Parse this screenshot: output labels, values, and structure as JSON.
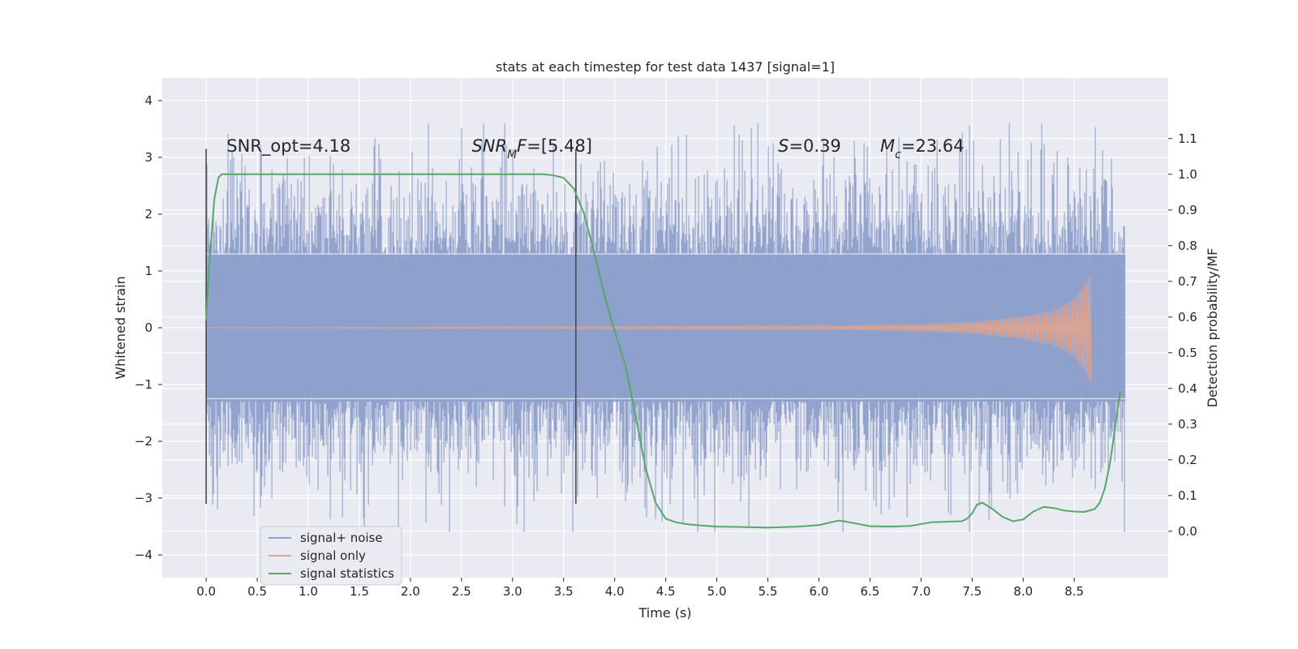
{
  "chart_data": {
    "type": "line",
    "title": "stats at each timestep for test data 1437 [signal=1]",
    "xlabel": "Time (s)",
    "ylabel": "Whitened strain",
    "y2label": "Detection probability/MF",
    "xlim": [
      -0.43,
      9.42
    ],
    "ylim": [
      -4.4,
      4.4
    ],
    "y2lim": [
      -0.13,
      1.27
    ],
    "x_ticks": [
      0.0,
      0.5,
      1.0,
      1.5,
      2.0,
      2.5,
      3.0,
      3.5,
      4.0,
      4.5,
      5.0,
      5.5,
      6.0,
      6.5,
      7.0,
      7.5,
      8.0,
      8.5
    ],
    "x_tick_labels": [
      "0.0",
      "0.5",
      "1.0",
      "1.5",
      "2.0",
      "2.5",
      "3.0",
      "3.5",
      "4.0",
      "4.5",
      "5.0",
      "5.5",
      "6.0",
      "6.5",
      "7.0",
      "7.5",
      "8.0",
      "8.5"
    ],
    "y_ticks": [
      4,
      3,
      2,
      1,
      0,
      -1,
      -2,
      -3,
      -4
    ],
    "y_tick_labels": [
      "4",
      "3",
      "2",
      "1",
      "0",
      "−1",
      "−2",
      "−3",
      "−4"
    ],
    "y2_ticks": [
      1.1,
      1.0,
      0.9,
      0.8,
      0.7,
      0.6,
      0.5,
      0.4,
      0.3,
      0.2,
      0.1,
      0.0
    ],
    "y2_tick_labels": [
      "1.1",
      "1.0",
      "0.9",
      "0.8",
      "0.7",
      "0.6",
      "0.5",
      "0.4",
      "0.3",
      "0.2",
      "0.1",
      "0.0"
    ],
    "grid": true,
    "legend_position": "lower-left",
    "annotations": [
      {
        "text": "SNR_opt=4.18",
        "x": 0.2
      },
      {
        "text": "SNR_MF=[5.48]",
        "x": 2.6
      },
      {
        "text": "S=0.39",
        "x": 5.6
      },
      {
        "text": "M_c=23.64",
        "x": 6.6
      }
    ],
    "annotations_y": 3.1,
    "vertical_markers": [
      {
        "x": 0.0,
        "y_range": [
          -3.1,
          3.15
        ]
      },
      {
        "x": 3.62,
        "y_range": [
          -3.1,
          3.15
        ]
      }
    ],
    "series": [
      {
        "name": "signal+ noise",
        "color": "#8da0cb",
        "style": "dense noise, x from 0.0 to 9.0 s, bulk amplitude about ±1.3, frequent excursions to ±2.0, peaks near ±3.5",
        "x_range": [
          0.0,
          9.0
        ],
        "envelope": [
          1.3,
          2.0,
          3.6
        ]
      },
      {
        "name": "signal only",
        "color": "#e5a48a",
        "style": "chirp growing in amplitude, ending near 8.65 s",
        "x_range": [
          0.0,
          8.67
        ],
        "amplitude_points": [
          [
            0.0,
            0.0
          ],
          [
            6.0,
            0.03
          ],
          [
            7.0,
            0.06
          ],
          [
            7.5,
            0.1
          ],
          [
            8.0,
            0.2
          ],
          [
            8.3,
            0.3
          ],
          [
            8.5,
            0.5
          ],
          [
            8.62,
            0.8
          ],
          [
            8.65,
            0.95
          ]
        ]
      },
      {
        "name": "signal statistics",
        "color": "#55a868",
        "axis": "right",
        "x": [
          0.0,
          0.02,
          0.05,
          0.08,
          0.12,
          0.15,
          0.2,
          0.25,
          0.3,
          0.5,
          1.0,
          2.0,
          3.0,
          3.3,
          3.4,
          3.5,
          3.6,
          3.7,
          3.8,
          3.9,
          4.0,
          4.1,
          4.2,
          4.3,
          4.4,
          4.5,
          4.6,
          4.7,
          4.8,
          5.0,
          5.2,
          5.5,
          5.8,
          6.0,
          6.1,
          6.2,
          6.3,
          6.5,
          6.7,
          6.9,
          7.1,
          7.3,
          7.4,
          7.45,
          7.5,
          7.55,
          7.6,
          7.7,
          7.8,
          7.9,
          8.0,
          8.1,
          8.2,
          8.3,
          8.4,
          8.5,
          8.6,
          8.7,
          8.75,
          8.8,
          8.85,
          8.9,
          8.95
        ],
        "values": [
          0.59,
          0.7,
          0.82,
          0.93,
          0.99,
          1.0,
          1.0,
          1.0,
          1.0,
          1.0,
          1.0,
          1.0,
          1.0,
          1.0,
          0.997,
          0.99,
          0.96,
          0.89,
          0.78,
          0.66,
          0.56,
          0.47,
          0.33,
          0.18,
          0.08,
          0.035,
          0.025,
          0.02,
          0.017,
          0.013,
          0.012,
          0.01,
          0.013,
          0.017,
          0.024,
          0.03,
          0.025,
          0.014,
          0.013,
          0.015,
          0.025,
          0.027,
          0.028,
          0.035,
          0.05,
          0.075,
          0.08,
          0.062,
          0.04,
          0.028,
          0.033,
          0.055,
          0.068,
          0.065,
          0.058,
          0.055,
          0.054,
          0.062,
          0.08,
          0.12,
          0.19,
          0.29,
          0.39
        ]
      }
    ]
  }
}
